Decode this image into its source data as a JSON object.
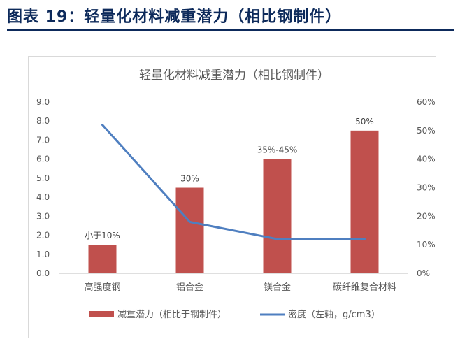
{
  "heading": "图表 19：轻量化材料减重潜力（相比钢制件）",
  "chart_data": {
    "type": "bar",
    "title": "轻量化材料减重潜力（相比钢制件）",
    "categories": [
      "高强度钢",
      "铝合金",
      "镁合金",
      "碳纤维复合材料"
    ],
    "series": [
      {
        "name": "减重潜力（相比于钢制件）",
        "type": "bar",
        "axis": "right",
        "values": [
          0.1,
          0.3,
          0.4,
          0.5
        ],
        "labels": [
          "小于10%",
          "30%",
          "35%-45%",
          "50%"
        ],
        "color": "#c0504d"
      },
      {
        "name": "密度（左轴，g/cm3）",
        "type": "line",
        "axis": "left",
        "values": [
          7.8,
          2.7,
          1.8,
          1.8
        ],
        "color": "#4f7fc0"
      }
    ],
    "left_axis": {
      "min": 0,
      "max": 9,
      "step": 1,
      "tick_labels": [
        "0.0",
        "1.0",
        "2.0",
        "3.0",
        "4.0",
        "5.0",
        "6.0",
        "7.0",
        "8.0",
        "9.0"
      ]
    },
    "right_axis": {
      "min": 0,
      "max": 0.6,
      "step": 0.1,
      "tick_labels": [
        "0%",
        "10%",
        "20%",
        "30%",
        "40%",
        "50%",
        "60%"
      ]
    },
    "grid": false,
    "legend": "bottom"
  }
}
